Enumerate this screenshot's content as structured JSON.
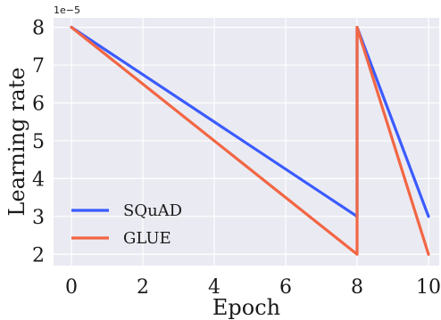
{
  "chart_data": {
    "type": "line",
    "xlabel": "Epoch",
    "ylabel": "Learning rate",
    "offset_label": "1e−5",
    "xlim": [
      -0.5,
      10.3
    ],
    "ylim": [
      1.7,
      8.25
    ],
    "xticks": [
      0,
      2,
      4,
      6,
      8,
      10
    ],
    "yticks": [
      2,
      3,
      4,
      5,
      6,
      7,
      8
    ],
    "grid": true,
    "legend_position": "lower-left",
    "background": "#eaeaf2",
    "series": [
      {
        "name": "SQuAD",
        "color": "#3b5bff",
        "points": [
          [
            0,
            8
          ],
          [
            8,
            3
          ],
          [
            8,
            8
          ],
          [
            10,
            3
          ]
        ]
      },
      {
        "name": "GLUE",
        "color": "#f26644",
        "points": [
          [
            0,
            8
          ],
          [
            8,
            2
          ],
          [
            8,
            8
          ],
          [
            10,
            2
          ]
        ]
      }
    ]
  }
}
